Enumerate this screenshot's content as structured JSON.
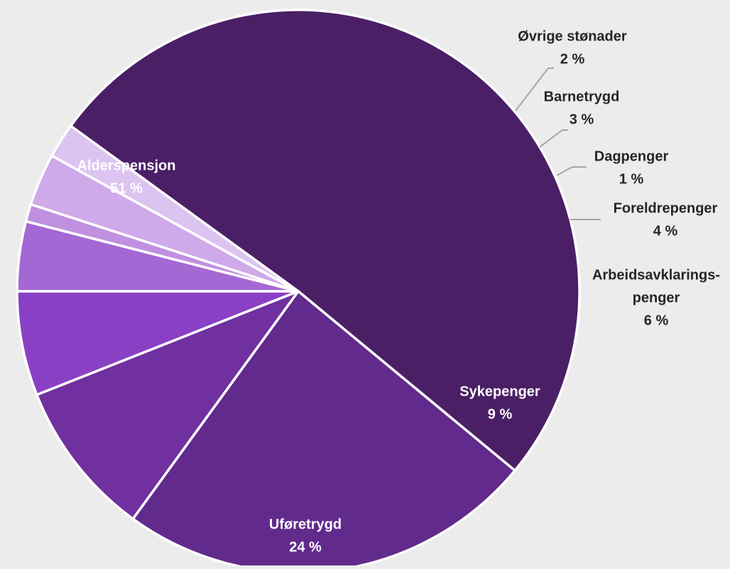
{
  "chart_data": {
    "type": "pie",
    "slices": [
      {
        "label": "Alderspensjon",
        "value": 51,
        "value_label": "51 %",
        "color": "#4a1f66"
      },
      {
        "label": "Uføretrygd",
        "value": 24,
        "value_label": "24 %",
        "color": "#622a8c"
      },
      {
        "label": "Sykepenger",
        "value": 9,
        "value_label": "9 %",
        "color": "#7030a0"
      },
      {
        "label": "Arbeidsavklarings-penger",
        "label_lines": [
          "Arbeidsavklarings-",
          "penger"
        ],
        "value": 6,
        "value_label": "6 %",
        "color": "#8a40c4"
      },
      {
        "label": "Foreldrepenger",
        "value": 4,
        "value_label": "4 %",
        "color": "#a468d4"
      },
      {
        "label": "Dagpenger",
        "value": 1,
        "value_label": "1 %",
        "color": "#bf90e0"
      },
      {
        "label": "Barnetrygd",
        "value": 3,
        "value_label": "3 %",
        "color": "#cfaaea"
      },
      {
        "label": "Øvrige stønader",
        "value": 2,
        "value_label": "2 %",
        "color": "#dcc4f0"
      }
    ],
    "start_angle_deg": 216,
    "direction": "clockwise",
    "legend": "none",
    "labels": "category and percent on or beside each slice"
  }
}
